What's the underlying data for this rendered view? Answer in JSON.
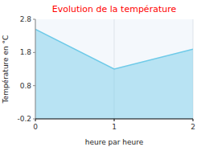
{
  "chart_data": {
    "type": "area",
    "title": "Evolution de la température",
    "xlabel": "heure par heure",
    "ylabel": "Température en °C",
    "x": [
      0,
      1,
      2
    ],
    "values": [
      2.5,
      1.3,
      1.9
    ],
    "color": "#6ecae8",
    "xlim": [
      0,
      2
    ],
    "ylim": [
      -0.2,
      2.8
    ],
    "xticks": [
      0,
      1,
      2
    ],
    "yticks": [
      -0.2,
      0.8,
      1.8,
      2.8
    ],
    "grid": "x"
  }
}
